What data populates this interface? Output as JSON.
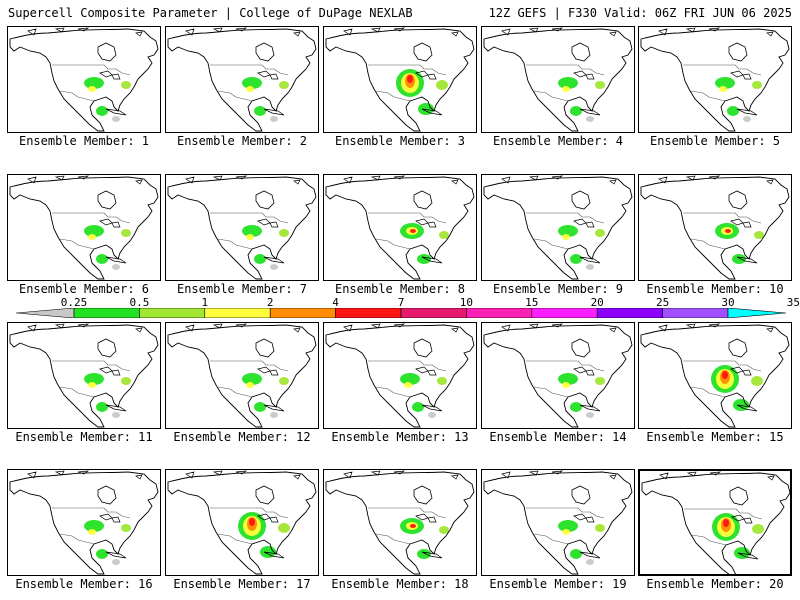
{
  "header": {
    "left_title": "Supercell Composite Parameter | College of DuPage NEXLAB",
    "right_title": "12Z GEFS | F330 Valid: 06Z FRI JUN 06 2025"
  },
  "colorbar": {
    "ticks": [
      "0.25",
      "0.5",
      "1",
      "2",
      "4",
      "7",
      "10",
      "15",
      "20",
      "25",
      "30",
      "35"
    ],
    "colors": [
      "#c8c8c8",
      "#22e122",
      "#a0e632",
      "#ffff3c",
      "#ff8c00",
      "#ff1414",
      "#e6196e",
      "#ff1eb4",
      "#ff1eff",
      "#8c00ff",
      "#a050ff",
      "#00ffff"
    ]
  },
  "panels": [
    {
      "label": "Ensemble Member: 1",
      "level": "light",
      "highlighted": false
    },
    {
      "label": "Ensemble Member: 2",
      "level": "light",
      "highlighted": false
    },
    {
      "label": "Ensemble Member: 3",
      "level": "strong",
      "highlighted": false
    },
    {
      "label": "Ensemble Member: 4",
      "level": "light",
      "highlighted": false
    },
    {
      "label": "Ensemble Member: 5",
      "level": "light",
      "highlighted": false
    },
    {
      "label": "Ensemble Member: 6",
      "level": "light",
      "highlighted": false
    },
    {
      "label": "Ensemble Member: 7",
      "level": "light",
      "highlighted": false
    },
    {
      "label": "Ensemble Member: 8",
      "level": "medium",
      "highlighted": false
    },
    {
      "label": "Ensemble Member: 9",
      "level": "light",
      "highlighted": false
    },
    {
      "label": "Ensemble Member: 10",
      "level": "medium",
      "highlighted": false
    },
    {
      "label": "Ensemble Member: 11",
      "level": "light",
      "highlighted": false
    },
    {
      "label": "Ensemble Member: 12",
      "level": "light",
      "highlighted": false
    },
    {
      "label": "Ensemble Member: 13",
      "level": "light",
      "highlighted": false
    },
    {
      "label": "Ensemble Member: 14",
      "level": "light",
      "highlighted": false
    },
    {
      "label": "Ensemble Member: 15",
      "level": "strong",
      "highlighted": false
    },
    {
      "label": "Ensemble Member: 16",
      "level": "light",
      "highlighted": false
    },
    {
      "label": "Ensemble Member: 17",
      "level": "strong",
      "highlighted": false
    },
    {
      "label": "Ensemble Member: 18",
      "level": "medium",
      "highlighted": false
    },
    {
      "label": "Ensemble Member: 19",
      "level": "light",
      "highlighted": false
    },
    {
      "label": "Ensemble Member: 20",
      "level": "strong",
      "highlighted": true
    }
  ]
}
